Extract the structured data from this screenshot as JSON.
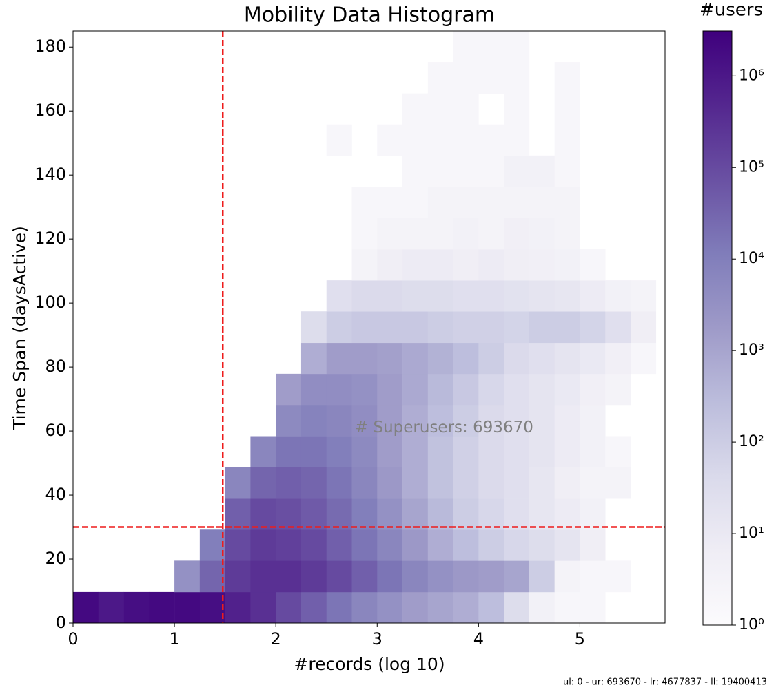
{
  "chart_data": {
    "type": "hist2d",
    "title": "Mobility Data Histogram",
    "x_label": "#records (log 10)",
    "y_label": "Time Span (daysActive)",
    "colorbar_title": "#users",
    "annotation": {
      "text": "# Superusers: 693670",
      "x": 2.78,
      "y": 61
    },
    "footer": "ul: 0 - ur: 693670 - lr: 4677837 - ll: 19400413",
    "xlim": [
      0,
      5.84
    ],
    "ylim": [
      0,
      185
    ],
    "xticks": [
      0,
      1,
      2,
      3,
      4,
      5
    ],
    "yticks": [
      0,
      20,
      40,
      60,
      80,
      100,
      120,
      140,
      160,
      180
    ],
    "clim": [
      1,
      3100000
    ],
    "cticks": [
      {
        "value": 1,
        "label": "10⁰"
      },
      {
        "value": 10,
        "label": "10¹"
      },
      {
        "value": 100,
        "label": "10²"
      },
      {
        "value": 1000,
        "label": "10³"
      },
      {
        "value": 10000,
        "label": "10⁴"
      },
      {
        "value": 100000,
        "label": "10⁵"
      },
      {
        "value": 1000000,
        "label": "10⁶"
      }
    ],
    "log_color_scale": true,
    "colormap": [
      "#fcfbfd",
      "#efedf5",
      "#dadaeb",
      "#bcbddc",
      "#9e9ac8",
      "#807dba",
      "#6a51a3",
      "#54278f",
      "#3f007d"
    ],
    "vlines": [
      1.477
    ],
    "hlines": [
      30
    ],
    "line_color": "#ee1c1c",
    "xbins": [
      0,
      0.25,
      0.5,
      0.75,
      1,
      1.25,
      1.5,
      1.75,
      2,
      2.25,
      2.5,
      2.75,
      3,
      3.25,
      3.5,
      3.75,
      4,
      4.25,
      4.5,
      4.75,
      5,
      5.25,
      5.5,
      5.75
    ],
    "ybins": [
      0,
      9.7,
      19.5,
      29.2,
      38.9,
      48.7,
      58.4,
      68.2,
      77.9,
      87.6,
      97.4,
      107.1,
      116.8,
      126.6,
      136.3,
      146.1,
      155.8,
      165.5,
      175.3,
      185
    ],
    "counts": [
      [
        2000000,
        1000000,
        1600000,
        2000000,
        2000000,
        1600000,
        630000,
        320000,
        100000,
        40000,
        16000,
        6300,
        3200,
        1600,
        1000,
        630,
        250,
        32,
        4,
        2,
        2,
        null,
        null
      ],
      [
        null,
        null,
        null,
        null,
        3200,
        32000,
        200000,
        320000,
        320000,
        200000,
        100000,
        40000,
        16000,
        6300,
        3200,
        2000,
        1600,
        1000,
        100,
        3,
        2,
        2,
        null
      ],
      [
        null,
        null,
        null,
        null,
        null,
        10000,
        100000,
        200000,
        160000,
        100000,
        40000,
        16000,
        6300,
        2000,
        630,
        250,
        100,
        50,
        32,
        16,
        6,
        null,
        null
      ],
      [
        null,
        null,
        null,
        null,
        null,
        null,
        40000,
        100000,
        79000,
        50000,
        25000,
        10000,
        3200,
        1000,
        320,
        100,
        50,
        25,
        13,
        8,
        4,
        null,
        null
      ],
      [
        null,
        null,
        null,
        null,
        null,
        null,
        6300,
        32000,
        40000,
        32000,
        16000,
        6300,
        2000,
        630,
        200,
        79,
        40,
        25,
        13,
        6,
        3,
        3,
        null
      ],
      [
        null,
        null,
        null,
        null,
        null,
        null,
        null,
        6300,
        16000,
        16000,
        10000,
        5000,
        1600,
        630,
        200,
        79,
        40,
        25,
        16,
        8,
        4,
        2,
        null
      ],
      [
        null,
        null,
        null,
        null,
        null,
        null,
        null,
        null,
        5000,
        7900,
        6300,
        4000,
        1600,
        630,
        250,
        100,
        40,
        25,
        16,
        8,
        4,
        null,
        null
      ],
      [
        null,
        null,
        null,
        null,
        null,
        null,
        null,
        null,
        1600,
        4000,
        4000,
        3200,
        1600,
        790,
        320,
        130,
        50,
        25,
        16,
        10,
        5,
        3,
        null
      ],
      [
        null,
        null,
        null,
        null,
        null,
        null,
        null,
        null,
        null,
        630,
        1600,
        1600,
        1300,
        790,
        500,
        250,
        100,
        40,
        25,
        16,
        10,
        5,
        2
      ],
      [
        null,
        null,
        null,
        null,
        null,
        null,
        null,
        null,
        null,
        32,
        100,
        130,
        130,
        130,
        100,
        79,
        79,
        63,
        100,
        100,
        63,
        25,
        6
      ],
      [
        null,
        null,
        null,
        null,
        null,
        null,
        null,
        null,
        null,
        null,
        25,
        40,
        40,
        32,
        32,
        25,
        25,
        20,
        16,
        13,
        8,
        4,
        3
      ],
      [
        null,
        null,
        null,
        null,
        null,
        null,
        null,
        null,
        null,
        null,
        null,
        3,
        6,
        8,
        8,
        6,
        8,
        6,
        5,
        4,
        2,
        null,
        null
      ],
      [
        null,
        null,
        null,
        null,
        null,
        null,
        null,
        null,
        null,
        null,
        null,
        2,
        3,
        3,
        3,
        4,
        3,
        5,
        4,
        3,
        null,
        null,
        null
      ],
      [
        null,
        null,
        null,
        null,
        null,
        null,
        null,
        null,
        null,
        null,
        null,
        2,
        2,
        2,
        3,
        3,
        3,
        3,
        3,
        3,
        null,
        null,
        null
      ],
      [
        null,
        null,
        null,
        null,
        null,
        null,
        null,
        null,
        null,
        null,
        null,
        null,
        null,
        2,
        2,
        2,
        2,
        4,
        4,
        2,
        null,
        null,
        null
      ],
      [
        null,
        null,
        null,
        null,
        null,
        null,
        null,
        null,
        null,
        null,
        2,
        null,
        2,
        2,
        2,
        2,
        2,
        2,
        null,
        2,
        null,
        null,
        null
      ],
      [
        null,
        null,
        null,
        null,
        null,
        null,
        null,
        null,
        null,
        null,
        null,
        null,
        null,
        2,
        2,
        2,
        null,
        2,
        null,
        2,
        null,
        null,
        null
      ],
      [
        null,
        null,
        null,
        null,
        null,
        null,
        null,
        null,
        null,
        null,
        null,
        null,
        null,
        null,
        2,
        2,
        2,
        2,
        null,
        2,
        null,
        null,
        null
      ],
      [
        null,
        null,
        null,
        null,
        null,
        null,
        null,
        null,
        null,
        null,
        null,
        null,
        null,
        null,
        null,
        2,
        2,
        2,
        null,
        null,
        null,
        null,
        null
      ]
    ]
  }
}
